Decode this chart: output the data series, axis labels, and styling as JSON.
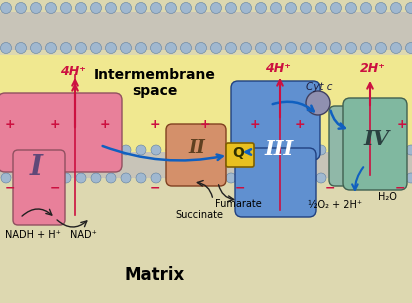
{
  "bg_matrix": "#ddd8b0",
  "bg_intermembrane": "#f0e890",
  "complex_I_color": "#e8809a",
  "complex_II_color": "#d4906a",
  "complex_III_color": "#6090d0",
  "complex_IV_left_color": "#90b8a8",
  "complex_IV_right_color": "#80b8a0",
  "Q_color": "#e8c020",
  "cytc_color": "#9090b0",
  "arrow_color_proton": "#cc1040",
  "arrow_color_electron": "#1060c0",
  "arrow_color_black": "#202020",
  "plus_color": "#cc1040",
  "minus_color": "#cc1040",
  "membrane_head_color": "#a0b8d0",
  "membrane_head_edge": "#6080a0",
  "membrane_body_color": "#c8c4b8",
  "label_4H_left": "4H⁺",
  "label_4H_mid": "4H⁺",
  "label_2H": "2H⁺",
  "label_intermembrane": "Intermembrane\nspace",
  "label_matrix": "Matrix",
  "label_I": "I",
  "label_II": "II",
  "label_III": "III",
  "label_IV": "IV",
  "label_Q": "Q",
  "label_cytc": "Cyt c",
  "label_nadh": "NADH + H⁺",
  "label_nad": "NAD⁺",
  "label_succinate": "Succinate",
  "label_fumarate": "Fumarate",
  "label_oxygen": "½O₂ + 2H⁺",
  "label_water": "H₂O",
  "figsize": [
    4.12,
    3.03
  ],
  "dpi": 100
}
